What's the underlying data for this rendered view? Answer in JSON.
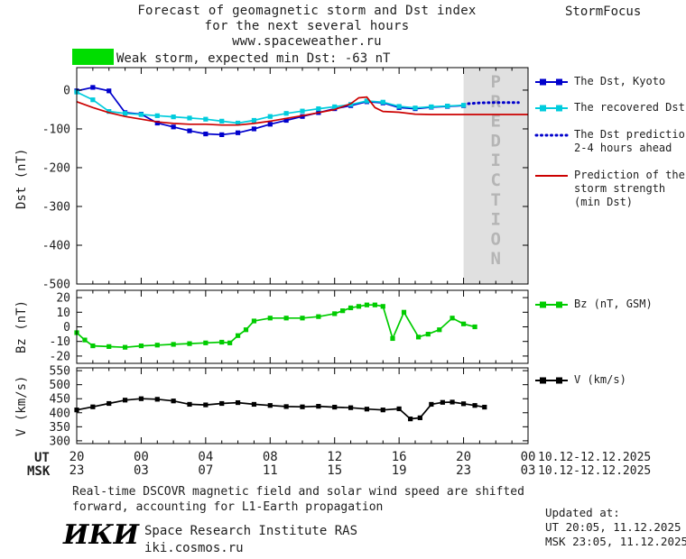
{
  "header": {
    "title_line1": "Forecast of geomagnetic storm and Dst index",
    "title_line2": "for the next several hours",
    "title_line3": "www.spaceweather.ru",
    "brand": "StormFocus"
  },
  "status": {
    "label": "Weak storm, expected min Dst: -63 nT",
    "swatch_color": "#00dd00"
  },
  "colors": {
    "dst_kyoto": "#0000cc",
    "recovered_dst": "#00ccdd",
    "dst_prediction": "#0000cc",
    "storm_prediction": "#cc0000",
    "bz": "#00cc00",
    "v": "#000000",
    "prediction_band": "#e0e0e0",
    "prediction_text": "#b5b5b5"
  },
  "legend": {
    "dst_kyoto": "The Dst, Kyoto",
    "recovered_dst": "The recovered Dst",
    "dst_prediction_line1": "The Dst prediction",
    "dst_prediction_line2": "2-4 hours ahead",
    "storm_prediction_line1": "Prediction of the",
    "storm_prediction_line2": "storm strength",
    "storm_prediction_line3": "(min Dst)",
    "bz": "Bz (nT, GSM)",
    "v": "V (km/s)"
  },
  "axes": {
    "dst_ylabel": "Dst (nT)",
    "bz_ylabel": "Bz (nT)",
    "v_ylabel": "V (km/s)",
    "ut_label": "UT",
    "msk_label": "MSK",
    "ut_ticks": [
      "20",
      "00",
      "04",
      "08",
      "12",
      "16",
      "20",
      "00"
    ],
    "msk_ticks": [
      "23",
      "03",
      "07",
      "11",
      "15",
      "19",
      "23",
      "03"
    ],
    "ut_date_range": "10.12-12.12.2025",
    "msk_date_range": "10.12-12.12.2025"
  },
  "footer": {
    "note_line1": "Real-time DSCOVR magnetic field and solar wind speed are shifted",
    "note_line2": "forward, accounting for L1-Earth propagation",
    "logo": "ИКИ",
    "institute": "Space Research Institute RAS",
    "site": "iki.cosmos.ru",
    "updated_label": "Updated at:",
    "updated_ut": "UT  20:05, 11.12.2025",
    "updated_msk": "MSK 23:05, 11.12.2025"
  },
  "chart_data": [
    {
      "id": "dst",
      "type": "line",
      "ylabel": "Dst (nT)",
      "ylim": [
        -500,
        58
      ],
      "yticks": [
        0,
        -100,
        -200,
        -300,
        -400,
        -500
      ],
      "xlim_hours": [
        0,
        28
      ],
      "xticks_hours": [
        0,
        4,
        8,
        12,
        16,
        20,
        24,
        28
      ],
      "x_axis_note": "hours from 20:00 UT 10.12.2025, ticks every 4 h",
      "prediction_band_hours": [
        24,
        28
      ],
      "prediction_label": "PREDICTION",
      "series": [
        {
          "sid": "dst-kyoto",
          "name": "The Dst, Kyoto",
          "color": "#0000cc",
          "marker": true,
          "x": [
            0,
            1,
            2,
            3,
            4,
            5,
            6,
            7,
            8,
            9,
            10,
            11,
            12,
            13,
            14,
            15,
            16,
            17,
            18,
            19,
            20,
            21,
            22,
            23,
            24
          ],
          "y": [
            -2,
            7,
            -2,
            -58,
            -62,
            -85,
            -95,
            -105,
            -113,
            -115,
            -110,
            -100,
            -88,
            -78,
            -68,
            -58,
            -48,
            -40,
            -30,
            -33,
            -45,
            -48,
            -44,
            -42,
            -40
          ]
        },
        {
          "sid": "recovered-dst",
          "name": "The recovered Dst",
          "color": "#00ccdd",
          "marker": true,
          "x": [
            0,
            1,
            2,
            3,
            4,
            5,
            6,
            7,
            8,
            9,
            10,
            11,
            12,
            13,
            14,
            15,
            16,
            17,
            18,
            19,
            20,
            21,
            22,
            23,
            24
          ],
          "y": [
            -5,
            -25,
            -55,
            -60,
            -63,
            -66,
            -69,
            -72,
            -75,
            -80,
            -85,
            -78,
            -68,
            -60,
            -54,
            -48,
            -43,
            -37,
            -28,
            -31,
            -42,
            -46,
            -43,
            -41,
            -39
          ]
        },
        {
          "sid": "dst-prediction",
          "name": "The Dst prediction 2-4 hours ahead",
          "color": "#0000cc",
          "dotted": true,
          "x": [
            24.3,
            25,
            26,
            27.4
          ],
          "y": [
            -35,
            -33,
            -32,
            -32
          ]
        },
        {
          "sid": "storm-prediction",
          "name": "Prediction of the storm strength (min Dst)",
          "color": "#cc0000",
          "x": [
            0,
            1,
            2,
            3,
            4,
            5,
            6,
            7,
            8,
            9,
            10,
            11,
            12,
            13,
            14,
            15,
            16,
            17,
            17.5,
            18,
            18.5,
            19,
            20,
            21,
            22,
            28
          ],
          "y": [
            -30,
            -45,
            -58,
            -68,
            -75,
            -82,
            -86,
            -88,
            -88,
            -90,
            -90,
            -86,
            -80,
            -73,
            -66,
            -58,
            -50,
            -35,
            -20,
            -18,
            -45,
            -55,
            -57,
            -62,
            -63,
            -63
          ]
        }
      ]
    },
    {
      "id": "bz",
      "type": "line",
      "ylabel": "Bz (nT)",
      "ylim": [
        -25,
        25
      ],
      "yticks": [
        20,
        10,
        0,
        -10,
        -20
      ],
      "xlim_hours": [
        0,
        28
      ],
      "xticks_hours": [
        0,
        4,
        8,
        12,
        16,
        20,
        24,
        28
      ],
      "series": [
        {
          "sid": "bz",
          "name": "Bz (nT, GSM)",
          "color": "#00cc00",
          "marker": true,
          "x": [
            0,
            0.5,
            1,
            2,
            3,
            4,
            5,
            6,
            7,
            8,
            9,
            9.5,
            10,
            10.5,
            11,
            12,
            13,
            14,
            15,
            16,
            16.5,
            17,
            17.5,
            18,
            18.5,
            19,
            19.6,
            20.3,
            21.2,
            21.8,
            22.5,
            23.3,
            24,
            24.7
          ],
          "y": [
            -4,
            -9,
            -13,
            -13.5,
            -14,
            -13,
            -12.5,
            -12,
            -11.5,
            -11,
            -10.5,
            -11,
            -6,
            -2,
            4,
            6,
            6,
            6,
            7,
            9,
            11,
            13,
            14,
            15,
            15,
            14,
            -8,
            10,
            -7,
            -5,
            -2,
            6,
            2,
            0
          ]
        }
      ]
    },
    {
      "id": "v",
      "type": "line",
      "ylabel": "V (km/s)",
      "ylim": [
        290,
        560
      ],
      "yticks": [
        550,
        500,
        450,
        400,
        350,
        300
      ],
      "xlim_hours": [
        0,
        28
      ],
      "xticks_hours": [
        0,
        4,
        8,
        12,
        16,
        20,
        24,
        28
      ],
      "series": [
        {
          "sid": "v",
          "name": "V (km/s)",
          "color": "#000000",
          "marker": true,
          "x": [
            0,
            1,
            2,
            3,
            4,
            5,
            6,
            7,
            8,
            9,
            10,
            11,
            12,
            13,
            14,
            15,
            16,
            17,
            18,
            19,
            20,
            20.7,
            21.3,
            22,
            22.7,
            23.3,
            24,
            24.7,
            25.3
          ],
          "y": [
            410,
            421,
            433,
            445,
            450,
            448,
            442,
            430,
            428,
            433,
            436,
            430,
            426,
            422,
            421,
            423,
            420,
            418,
            413,
            410,
            414,
            378,
            382,
            430,
            437,
            438,
            432,
            426,
            420
          ]
        }
      ]
    }
  ]
}
